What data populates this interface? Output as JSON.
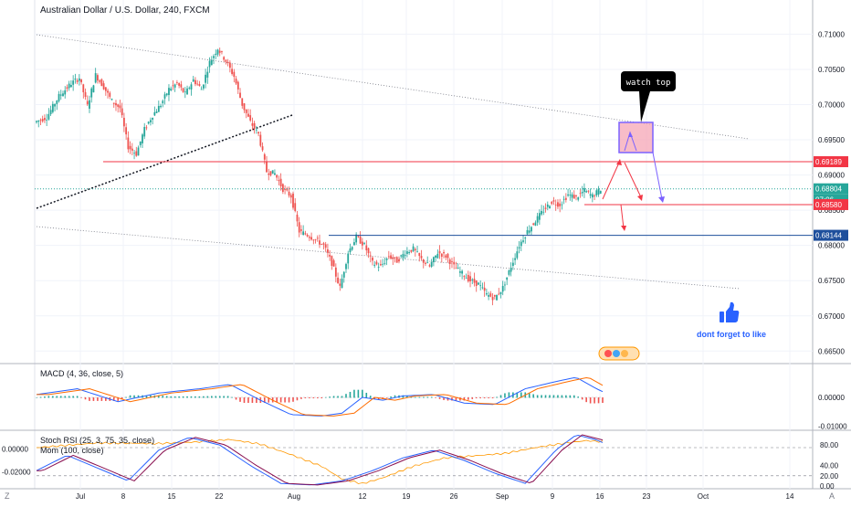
{
  "chart_data": [
    {
      "type": "candlestick",
      "title": "Australian Dollar / U.S. Dollar, 240, FXCM",
      "y_ticks": [
        "0.71000",
        "0.70500",
        "0.70000",
        "0.69500",
        "0.69000",
        "0.68500",
        "0.68000",
        "0.67500",
        "0.67000",
        "0.66500"
      ],
      "ylim": [
        0.664,
        0.712
      ],
      "x_ticks": [
        "Jul",
        "8",
        "15",
        "22",
        "Aug",
        "12",
        "19",
        "26",
        "Sep",
        "9",
        "16",
        "23",
        "Oct",
        "14"
      ],
      "price_path": [
        [
          0,
          0.6975
        ],
        [
          6,
          0.6982
        ],
        [
          12,
          0.7012
        ],
        [
          18,
          0.703
        ],
        [
          22,
          0.7038
        ],
        [
          26,
          0.6998
        ],
        [
          30,
          0.7042
        ],
        [
          34,
          0.7025
        ],
        [
          38,
          0.7005
        ],
        [
          42,
          0.6995
        ],
        [
          46,
          0.694
        ],
        [
          50,
          0.693
        ],
        [
          54,
          0.6965
        ],
        [
          58,
          0.6985
        ],
        [
          62,
          0.7
        ],
        [
          66,
          0.7022
        ],
        [
          70,
          0.703
        ],
        [
          74,
          0.7015
        ],
        [
          78,
          0.7035
        ],
        [
          82,
          0.7022
        ],
        [
          86,
          0.706
        ],
        [
          90,
          0.708
        ],
        [
          94,
          0.7062
        ],
        [
          98,
          0.704
        ],
        [
          102,
          0.7
        ],
        [
          106,
          0.6975
        ],
        [
          110,
          0.6958
        ],
        [
          114,
          0.6905
        ],
        [
          118,
          0.6902
        ],
        [
          122,
          0.688
        ],
        [
          126,
          0.687
        ],
        [
          130,
          0.682
        ],
        [
          134,
          0.6815
        ],
        [
          138,
          0.6808
        ],
        [
          142,
          0.68
        ],
        [
          146,
          0.6775
        ],
        [
          150,
          0.674
        ],
        [
          154,
          0.679
        ],
        [
          158,
          0.6812
        ],
        [
          162,
          0.68
        ],
        [
          166,
          0.6775
        ],
        [
          170,
          0.677
        ],
        [
          174,
          0.6785
        ],
        [
          178,
          0.6778
        ],
        [
          182,
          0.679
        ],
        [
          186,
          0.6795
        ],
        [
          190,
          0.678
        ],
        [
          194,
          0.677
        ],
        [
          198,
          0.679
        ],
        [
          202,
          0.6785
        ],
        [
          206,
          0.677
        ],
        [
          210,
          0.676
        ],
        [
          214,
          0.675
        ],
        [
          218,
          0.6745
        ],
        [
          222,
          0.673
        ],
        [
          226,
          0.6725
        ],
        [
          230,
          0.674
        ],
        [
          234,
          0.677
        ],
        [
          238,
          0.68
        ],
        [
          242,
          0.682
        ],
        [
          246,
          0.6835
        ],
        [
          250,
          0.685
        ],
        [
          254,
          0.6862
        ],
        [
          258,
          0.6858
        ],
        [
          262,
          0.6872
        ],
        [
          266,
          0.6868
        ],
        [
          270,
          0.6878
        ],
        [
          274,
          0.687
        ],
        [
          278,
          0.688
        ]
      ],
      "horizontal_levels": [
        {
          "value": 0.69189,
          "label": "0.69189",
          "color": "#f23645",
          "style": "solid"
        },
        {
          "value": 0.68804,
          "label": "0.68804",
          "color": "#26a69a",
          "style": "dotted"
        },
        {
          "value": 0.6858,
          "label": "0.68580",
          "color": "#f23645",
          "style": "solid"
        },
        {
          "value": 0.68144,
          "label": "0.68144",
          "color": "#1e4f9c",
          "style": "solid"
        }
      ],
      "price_labels": [
        {
          "text": "0.69189",
          "color": "#f23645"
        },
        {
          "text": "0.68804",
          "color": "#26a69a"
        },
        {
          "text": "07:06",
          "color": "#26a69a"
        },
        {
          "text": "0.68580",
          "color": "#f23645"
        },
        {
          "text": "0.68144",
          "color": "#1e4f9c"
        }
      ],
      "annotations": {
        "callout": "watch top",
        "like_note": "dont forget to like",
        "like_icon": "thumbs-up-icon"
      },
      "grid": true,
      "candle_colors": {
        "up": "#26a69a",
        "down": "#ef5350"
      }
    },
    {
      "type": "histogram",
      "title": "MACD (4, 36, close, 5)",
      "y_ticks": [
        "0.00000",
        "-0.01000"
      ],
      "ylim": [
        -0.0105,
        0.0105
      ],
      "macd_path": [
        [
          0,
          0.001
        ],
        [
          20,
          0.003
        ],
        [
          40,
          -0.0015
        ],
        [
          60,
          0.0015
        ],
        [
          80,
          0.003
        ],
        [
          95,
          0.0045
        ],
        [
          110,
          -0.001
        ],
        [
          125,
          -0.006
        ],
        [
          140,
          -0.0065
        ],
        [
          150,
          -0.0055
        ],
        [
          160,
          0.0
        ],
        [
          170,
          -0.001
        ],
        [
          180,
          0.0005
        ],
        [
          195,
          0.001
        ],
        [
          210,
          -0.002
        ],
        [
          225,
          -0.0025
        ],
        [
          240,
          0.003
        ],
        [
          255,
          0.0055
        ],
        [
          265,
          0.007
        ],
        [
          275,
          0.003
        ],
        [
          278,
          0.002
        ]
      ],
      "colors": {
        "macd": "#2962ff",
        "signal": "#ff6d00",
        "hist_up": "#26a69a",
        "hist_down": "#ef5350"
      }
    },
    {
      "type": "line",
      "title": "Stoch RSI (25, 3, 75, 35, close)",
      "subtitle": "Mom (100, close)",
      "left_ticks": [
        "0.00000",
        "-0.02000"
      ],
      "right_ticks": [
        "80.00",
        "40.00",
        "20.00",
        "0.00"
      ],
      "stoch_path": [
        [
          0,
          30
        ],
        [
          15,
          60
        ],
        [
          30,
          35
        ],
        [
          45,
          10
        ],
        [
          60,
          70
        ],
        [
          75,
          95
        ],
        [
          90,
          80
        ],
        [
          105,
          40
        ],
        [
          120,
          5
        ],
        [
          135,
          2
        ],
        [
          150,
          10
        ],
        [
          165,
          30
        ],
        [
          180,
          55
        ],
        [
          195,
          70
        ],
        [
          210,
          50
        ],
        [
          225,
          25
        ],
        [
          240,
          5
        ],
        [
          255,
          70
        ],
        [
          265,
          100
        ],
        [
          275,
          90
        ],
        [
          278,
          85
        ]
      ],
      "mom_path": [
        [
          0,
          0.001
        ],
        [
          30,
          0.005
        ],
        [
          60,
          0.0045
        ],
        [
          80,
          0.006
        ],
        [
          95,
          0.008
        ],
        [
          110,
          0.004
        ],
        [
          125,
          -0.005
        ],
        [
          140,
          -0.015
        ],
        [
          150,
          -0.026
        ],
        [
          160,
          -0.03
        ],
        [
          170,
          -0.025
        ],
        [
          185,
          -0.015
        ],
        [
          200,
          -0.008
        ],
        [
          215,
          -0.006
        ],
        [
          230,
          -0.004
        ],
        [
          245,
          0.001
        ],
        [
          260,
          0.005
        ],
        [
          270,
          0.007
        ],
        [
          278,
          0.006
        ]
      ],
      "colors": {
        "stoch_k": "#2962ff",
        "stoch_d": "#880e4f",
        "mom": "#ff9800"
      }
    }
  ]
}
